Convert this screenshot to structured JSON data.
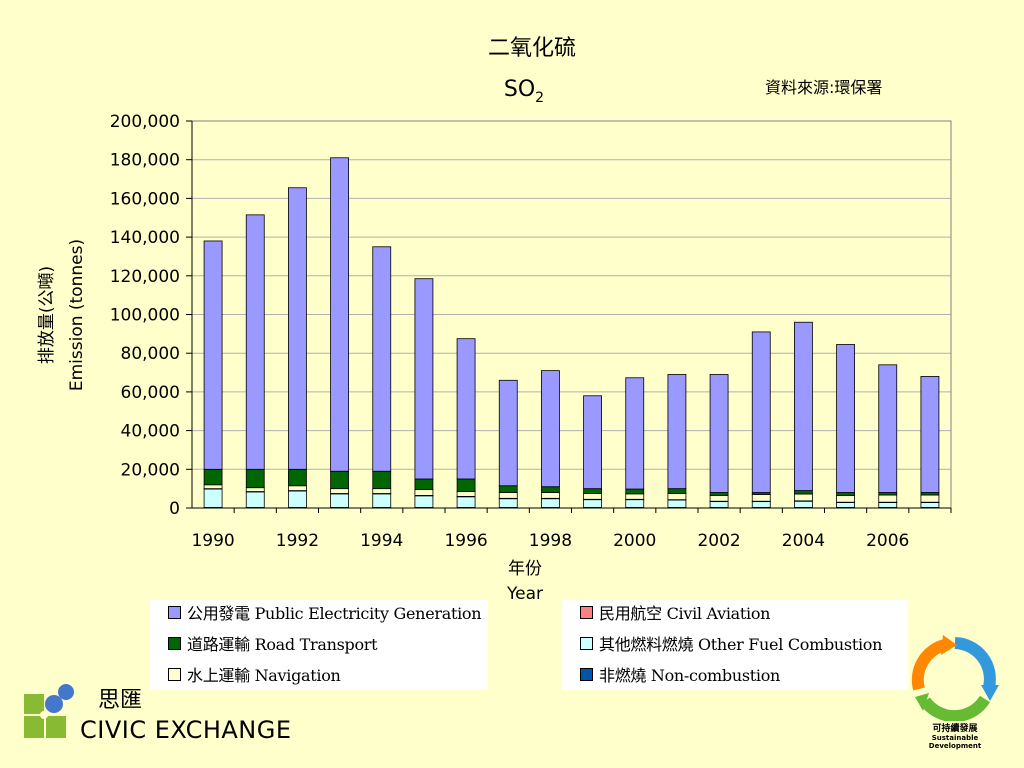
{
  "header": {
    "title_cn": "二氧化硫",
    "title_chem": "SO",
    "title_sub": "2",
    "source": "資料來源:環保署"
  },
  "chart_data": {
    "type": "bar",
    "stacked": true,
    "ylabel_cn": "排放量(公噸)",
    "ylabel_en": "Emission (tonnes)",
    "xlabel_cn": "年份",
    "xlabel_en": "Year",
    "ylim": [
      0,
      200000
    ],
    "yticks": [
      "0",
      "20,000",
      "40,000",
      "60,000",
      "80,000",
      "100,000",
      "120,000",
      "140,000",
      "160,000",
      "180,000",
      "200,000"
    ],
    "xtick_labels": [
      "1990",
      "1992",
      "1994",
      "1996",
      "1998",
      "2000",
      "2002",
      "2004",
      "2006"
    ],
    "grid": true,
    "categories": [
      "1990",
      "1991",
      "1992",
      "1993",
      "1994",
      "1995",
      "1996",
      "1997",
      "1998",
      "1999",
      "2000",
      "2001",
      "2002",
      "2003",
      "2004",
      "2005",
      "2006",
      "2007"
    ],
    "series": [
      {
        "name": "非燃燒 Non-combustion",
        "color": "#0055aa",
        "values": [
          300,
          300,
          300,
          300,
          300,
          300,
          300,
          300,
          300,
          300,
          300,
          300,
          300,
          300,
          300,
          300,
          300,
          300
        ]
      },
      {
        "name": "其他燃料燃燒 Other Fuel Combustion",
        "color": "#ccffff",
        "values": [
          9500,
          8000,
          8500,
          7000,
          7000,
          6000,
          5500,
          4500,
          4500,
          4000,
          4000,
          3800,
          3000,
          3000,
          3200,
          2500,
          2500,
          2500
        ]
      },
      {
        "name": "民用航空 Civil Aviation",
        "color": "#ff8080",
        "values": [
          200,
          200,
          200,
          200,
          200,
          200,
          200,
          200,
          200,
          200,
          200,
          200,
          200,
          200,
          200,
          200,
          200,
          200
        ]
      },
      {
        "name": "水上運輸 Navigation",
        "color": "#ffffcc",
        "values": [
          2000,
          2000,
          2500,
          2500,
          2500,
          3000,
          2500,
          3000,
          3000,
          3000,
          2800,
          3200,
          3000,
          3500,
          3500,
          3500,
          3700,
          3700
        ]
      },
      {
        "name": "道路運輸 Road Transport",
        "color": "#006600",
        "values": [
          8000,
          9500,
          8500,
          9000,
          9000,
          5500,
          6500,
          3500,
          3000,
          2500,
          2500,
          2500,
          1500,
          1000,
          1800,
          1500,
          1300,
          1300
        ]
      },
      {
        "name": "公用發電 Public Electricity Generation",
        "color": "#9999ff",
        "values": [
          118000,
          131500,
          145500,
          162000,
          116000,
          103500,
          72500,
          54500,
          60000,
          48000,
          57500,
          59000,
          61000,
          83000,
          87000,
          76500,
          66000,
          60000
        ]
      }
    ]
  },
  "legend_left": [
    {
      "series": 5,
      "label": "公用發電 Public Electricity Generation"
    },
    {
      "series": 4,
      "label": "道路運輸 Road Transport"
    },
    {
      "series": 3,
      "label": "水上運輸 Navigation"
    }
  ],
  "legend_right": [
    {
      "series": 2,
      "label": "民用航空 Civil Aviation"
    },
    {
      "series": 1,
      "label": "其他燃料燃燒 Other Fuel Combustion"
    },
    {
      "series": 0,
      "label": "非燃燒 Non-combustion"
    }
  ],
  "logos": {
    "civic_cn": "思匯",
    "civic_en": "CIVIC EXCHANGE",
    "sd_cn": "可持續發展",
    "sd_en": "Sustainable Development",
    "sd_colors": [
      "#3399dd",
      "#66bb33",
      "#ff8800"
    ]
  }
}
